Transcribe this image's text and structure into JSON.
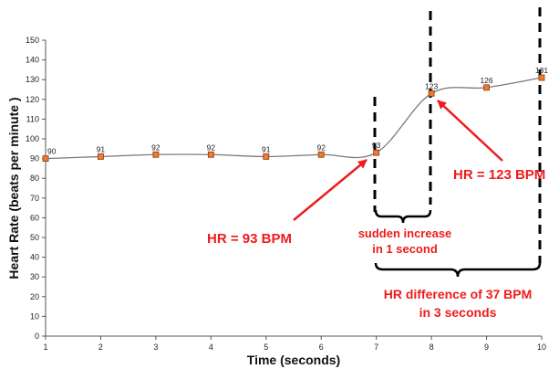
{
  "chart_data": {
    "type": "line",
    "title": "",
    "xlabel": "Time (seconds)",
    "ylabel": "Heart Rate (beats per minute )",
    "x": [
      1,
      2,
      3,
      4,
      5,
      6,
      7,
      8,
      9,
      10
    ],
    "series": [
      {
        "values": [
          90,
          91,
          92,
          92,
          91,
          92,
          93,
          123,
          126,
          131
        ]
      }
    ],
    "data_labels": [
      "90",
      "91",
      "92",
      "92",
      "91",
      "92",
      "93",
      "123",
      "126",
      "131"
    ],
    "xticks": [
      "1",
      "2",
      "3",
      "4",
      "5",
      "6",
      "7",
      "8",
      "9",
      "10"
    ],
    "yticks": [
      "0",
      "10",
      "20",
      "30",
      "40",
      "50",
      "60",
      "70",
      "80",
      "90",
      "100",
      "110",
      "120",
      "130",
      "140",
      "150"
    ],
    "xlim": [
      1,
      10
    ],
    "ylim": [
      0,
      150
    ],
    "grid": false,
    "legend": "none",
    "colors": {
      "line": "#7a7a7a",
      "marker_fill": "#f07b2e",
      "marker_stroke": "#8a3a0a",
      "annotation": "#ee1c1c",
      "guide": "#000000"
    },
    "annotations": {
      "hr93": "HR = 93 BPM",
      "hr123": "HR = 123 BPM",
      "sudden_line1": "sudden increase",
      "sudden_line2": "in 1 second",
      "diff_line1": "HR difference of 37 BPM",
      "diff_line2": "in 3 seconds"
    }
  }
}
